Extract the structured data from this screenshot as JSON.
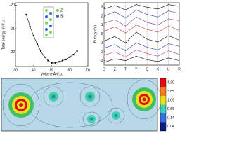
{
  "chart_data": [
    {
      "type": "line",
      "xlabel": "Volume Å³/f.u.",
      "ylabel": "Total energy eV/f.u.",
      "x": [
        36,
        38,
        40,
        42,
        44,
        46,
        48,
        50,
        52,
        54,
        56,
        58,
        60,
        62,
        64
      ],
      "values": [
        -20.4,
        -20.9,
        -21.3,
        -21.65,
        -21.95,
        -22.2,
        -22.35,
        -22.45,
        -22.45,
        -22.4,
        -22.35,
        -22.3,
        -22.2,
        -22.1,
        -21.95
      ],
      "color": "#000000",
      "xlim": [
        30,
        70
      ],
      "xticks": [
        30,
        40,
        50,
        60,
        70
      ],
      "ylim": [
        -22.6,
        -19.9
      ],
      "yticks": [
        -22,
        -21,
        -20
      ],
      "inset_legend": [
        {
          "name": "Zr",
          "color": "#7dd35a"
        },
        {
          "name": "Si",
          "color": "#3a5fd0"
        }
      ]
    },
    {
      "type": "band",
      "ylabel": "Energy(eV)",
      "categories": [
        "G",
        "Z",
        "T",
        "Y",
        "S",
        "X",
        "U",
        "R"
      ],
      "ylim": [
        -3.5,
        3.5
      ],
      "yticks": [
        -3,
        -2,
        -1,
        0,
        1,
        2,
        3
      ],
      "series": [
        {
          "color": "#000000",
          "values": [
            -3.2,
            -2.8,
            -3.0,
            -2.5,
            -2.9,
            -3.1,
            -2.7,
            -3.0
          ]
        },
        {
          "color": "#c03080",
          "values": [
            -2.4,
            -2.0,
            -2.6,
            -1.8,
            -2.2,
            -2.5,
            -1.9,
            -2.3
          ]
        },
        {
          "color": "#3040b0",
          "values": [
            -1.6,
            -1.2,
            -1.9,
            -1.0,
            -1.5,
            -1.8,
            -1.1,
            -1.4
          ]
        },
        {
          "color": "#000000",
          "values": [
            -0.8,
            -0.3,
            -1.0,
            0.2,
            -0.6,
            -0.9,
            -0.2,
            -0.7
          ]
        },
        {
          "color": "#d03030",
          "values": [
            0.3,
            0.8,
            0.1,
            1.0,
            0.5,
            0.2,
            0.9,
            0.4
          ]
        },
        {
          "color": "#7030a0",
          "values": [
            1.2,
            1.6,
            0.9,
            1.9,
            1.3,
            1.0,
            1.7,
            1.5
          ]
        },
        {
          "color": "#3040b0",
          "values": [
            2.0,
            2.5,
            1.8,
            2.7,
            2.2,
            1.9,
            2.6,
            2.3
          ]
        },
        {
          "color": "#000000",
          "values": [
            2.8,
            3.2,
            2.7,
            3.3,
            3.0,
            2.8,
            3.3,
            3.1
          ]
        }
      ]
    },
    {
      "type": "contour",
      "levels": [
        4.2,
        3.85,
        1.09,
        0.66,
        0.14,
        0.04
      ],
      "level_labels": [
        "4.20",
        "3.85",
        "1.09",
        "0.66",
        "0.14",
        "0.04"
      ],
      "level_colors": [
        "#e01010",
        "#f08020",
        "#e8e020",
        "#40d0c0",
        "#3070e0",
        "#102080"
      ]
    }
  ]
}
